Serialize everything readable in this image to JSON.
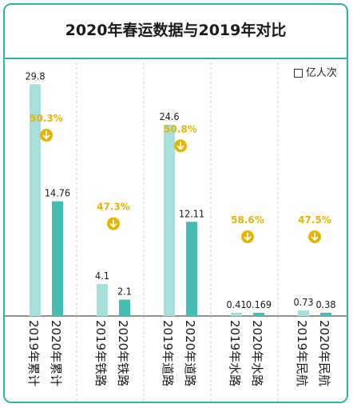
{
  "chart_data": {
    "type": "bar",
    "title": "2020年春运数据与2019年对比",
    "unit_legend": "亿人次",
    "colors": {
      "y2019": "#a8dedb",
      "y2020": "#46bdb2",
      "accent": "#e8b400",
      "frame": "#2fb6a9"
    },
    "groups": [
      {
        "bars": [
          {
            "label": "2019年累计",
            "value": 29.8,
            "text": "29.8"
          },
          {
            "label": "2020年累计",
            "value": 14.76,
            "text": "14.76"
          }
        ],
        "pct": "50.3%"
      },
      {
        "bars": [
          {
            "label": "2019年铁路",
            "value": 4.1,
            "text": "4.1"
          },
          {
            "label": "2020年铁路",
            "value": 2.1,
            "text": "2.1"
          }
        ],
        "pct": "47.3%"
      },
      {
        "bars": [
          {
            "label": "2019年道路",
            "value": 24.6,
            "text": "24.6"
          },
          {
            "label": "2020年道路",
            "value": 12.11,
            "text": "12.11"
          }
        ],
        "pct": "50.8%"
      },
      {
        "bars": [
          {
            "label": "2019年水路",
            "value": 0.41,
            "text": "0.41"
          },
          {
            "label": "2020年水路",
            "value": 0.169,
            "text": "0.169"
          }
        ],
        "pct": "58.6%"
      },
      {
        "bars": [
          {
            "label": "2019年民航",
            "value": 0.73,
            "text": "0.73"
          },
          {
            "label": "2020年民航",
            "value": 0.38,
            "text": "0.38"
          }
        ],
        "pct": "47.5%"
      }
    ]
  }
}
